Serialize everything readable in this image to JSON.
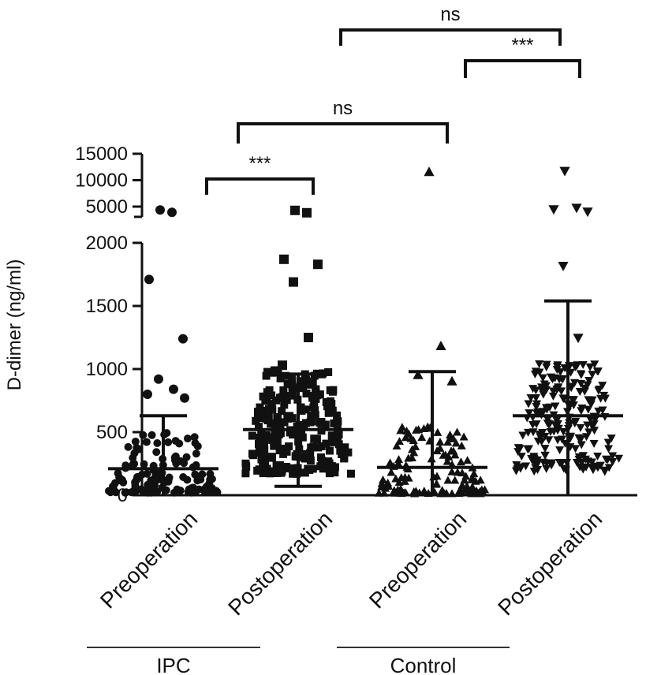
{
  "chart_data": {
    "type": "scatter",
    "ylabel": "D-dimer (ng/ml)",
    "y_axis": {
      "lower_segment": {
        "ylim": [
          0,
          2000
        ],
        "ticks": [
          "0",
          "500",
          "1000",
          "1500",
          "2000"
        ]
      },
      "upper_segment": {
        "ylim": [
          2000,
          15000
        ],
        "ticks": [
          "5000",
          "10000",
          "15000"
        ]
      },
      "broken": true
    },
    "categories": [
      "Preoperation",
      "Postoperation",
      "Preoperation",
      "Postoperation"
    ],
    "groups": [
      {
        "label": "IPC",
        "categories": [
          0,
          1
        ]
      },
      {
        "label": "Control",
        "categories": [
          2,
          3
        ]
      }
    ],
    "series": [
      {
        "category": 0,
        "marker": "circle",
        "mean": 210,
        "sd_upper": 630,
        "outliers": [
          4300,
          3800,
          1710,
          1240,
          920,
          840,
          800,
          770
        ]
      },
      {
        "category": 1,
        "marker": "square",
        "mean": 520,
        "sd_upper": 960,
        "sd_lower": 70,
        "outliers": [
          4200,
          3700,
          1870,
          1830,
          1690,
          1250,
          1030
        ]
      },
      {
        "category": 2,
        "marker": "triangle-up",
        "mean": 220,
        "sd_upper": 980,
        "outliers": [
          11500,
          1180,
          950,
          900
        ]
      },
      {
        "category": 3,
        "marker": "triangle-down",
        "mean": 630,
        "sd_upper": 1540,
        "outliers": [
          11800,
          4800,
          4500,
          4000,
          1820,
          1250
        ]
      }
    ],
    "comparisons": [
      {
        "from": 0,
        "to": 1,
        "label": "***"
      },
      {
        "from": 0,
        "to": 2,
        "label": "ns"
      },
      {
        "from": 2,
        "to": 3,
        "label": "***"
      },
      {
        "from": 1,
        "to": 3,
        "label": "ns"
      }
    ]
  }
}
